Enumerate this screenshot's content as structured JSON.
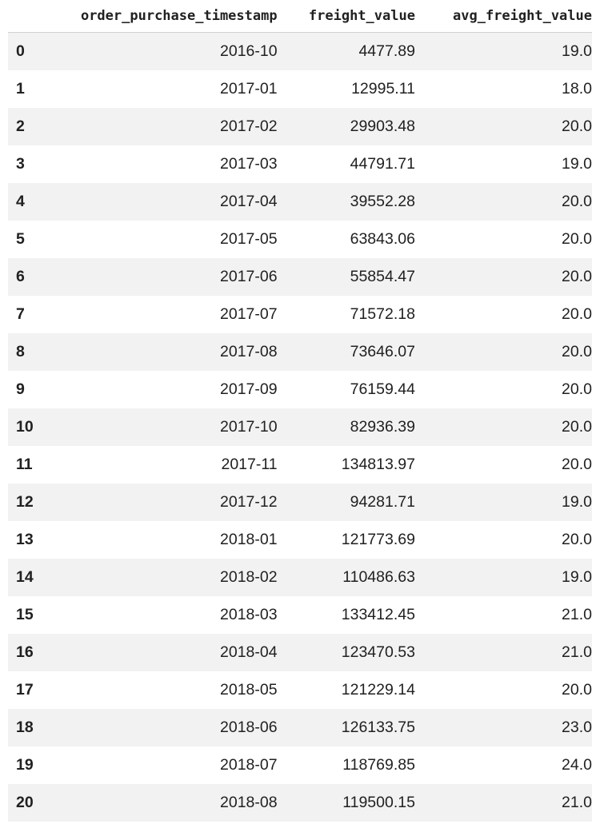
{
  "table": {
    "index_header": "",
    "columns": [
      "order_purchase_timestamp",
      "freight_value",
      "avg_freight_value"
    ],
    "rows": [
      {
        "index": "0",
        "cells": [
          "2016-10",
          "4477.89",
          "19.0"
        ]
      },
      {
        "index": "1",
        "cells": [
          "2017-01",
          "12995.11",
          "18.0"
        ]
      },
      {
        "index": "2",
        "cells": [
          "2017-02",
          "29903.48",
          "20.0"
        ]
      },
      {
        "index": "3",
        "cells": [
          "2017-03",
          "44791.71",
          "19.0"
        ]
      },
      {
        "index": "4",
        "cells": [
          "2017-04",
          "39552.28",
          "20.0"
        ]
      },
      {
        "index": "5",
        "cells": [
          "2017-05",
          "63843.06",
          "20.0"
        ]
      },
      {
        "index": "6",
        "cells": [
          "2017-06",
          "55854.47",
          "20.0"
        ]
      },
      {
        "index": "7",
        "cells": [
          "2017-07",
          "71572.18",
          "20.0"
        ]
      },
      {
        "index": "8",
        "cells": [
          "2017-08",
          "73646.07",
          "20.0"
        ]
      },
      {
        "index": "9",
        "cells": [
          "2017-09",
          "76159.44",
          "20.0"
        ]
      },
      {
        "index": "10",
        "cells": [
          "2017-10",
          "82936.39",
          "20.0"
        ]
      },
      {
        "index": "11",
        "cells": [
          "2017-11",
          "134813.97",
          "20.0"
        ]
      },
      {
        "index": "12",
        "cells": [
          "2017-12",
          "94281.71",
          "19.0"
        ]
      },
      {
        "index": "13",
        "cells": [
          "2018-01",
          "121773.69",
          "20.0"
        ]
      },
      {
        "index": "14",
        "cells": [
          "2018-02",
          "110486.63",
          "19.0"
        ]
      },
      {
        "index": "15",
        "cells": [
          "2018-03",
          "133412.45",
          "21.0"
        ]
      },
      {
        "index": "16",
        "cells": [
          "2018-04",
          "123470.53",
          "21.0"
        ]
      },
      {
        "index": "17",
        "cells": [
          "2018-05",
          "121229.14",
          "20.0"
        ]
      },
      {
        "index": "18",
        "cells": [
          "2018-06",
          "126133.75",
          "23.0"
        ]
      },
      {
        "index": "19",
        "cells": [
          "2018-07",
          "118769.85",
          "24.0"
        ]
      },
      {
        "index": "20",
        "cells": [
          "2018-08",
          "119500.15",
          "21.0"
        ]
      }
    ]
  }
}
